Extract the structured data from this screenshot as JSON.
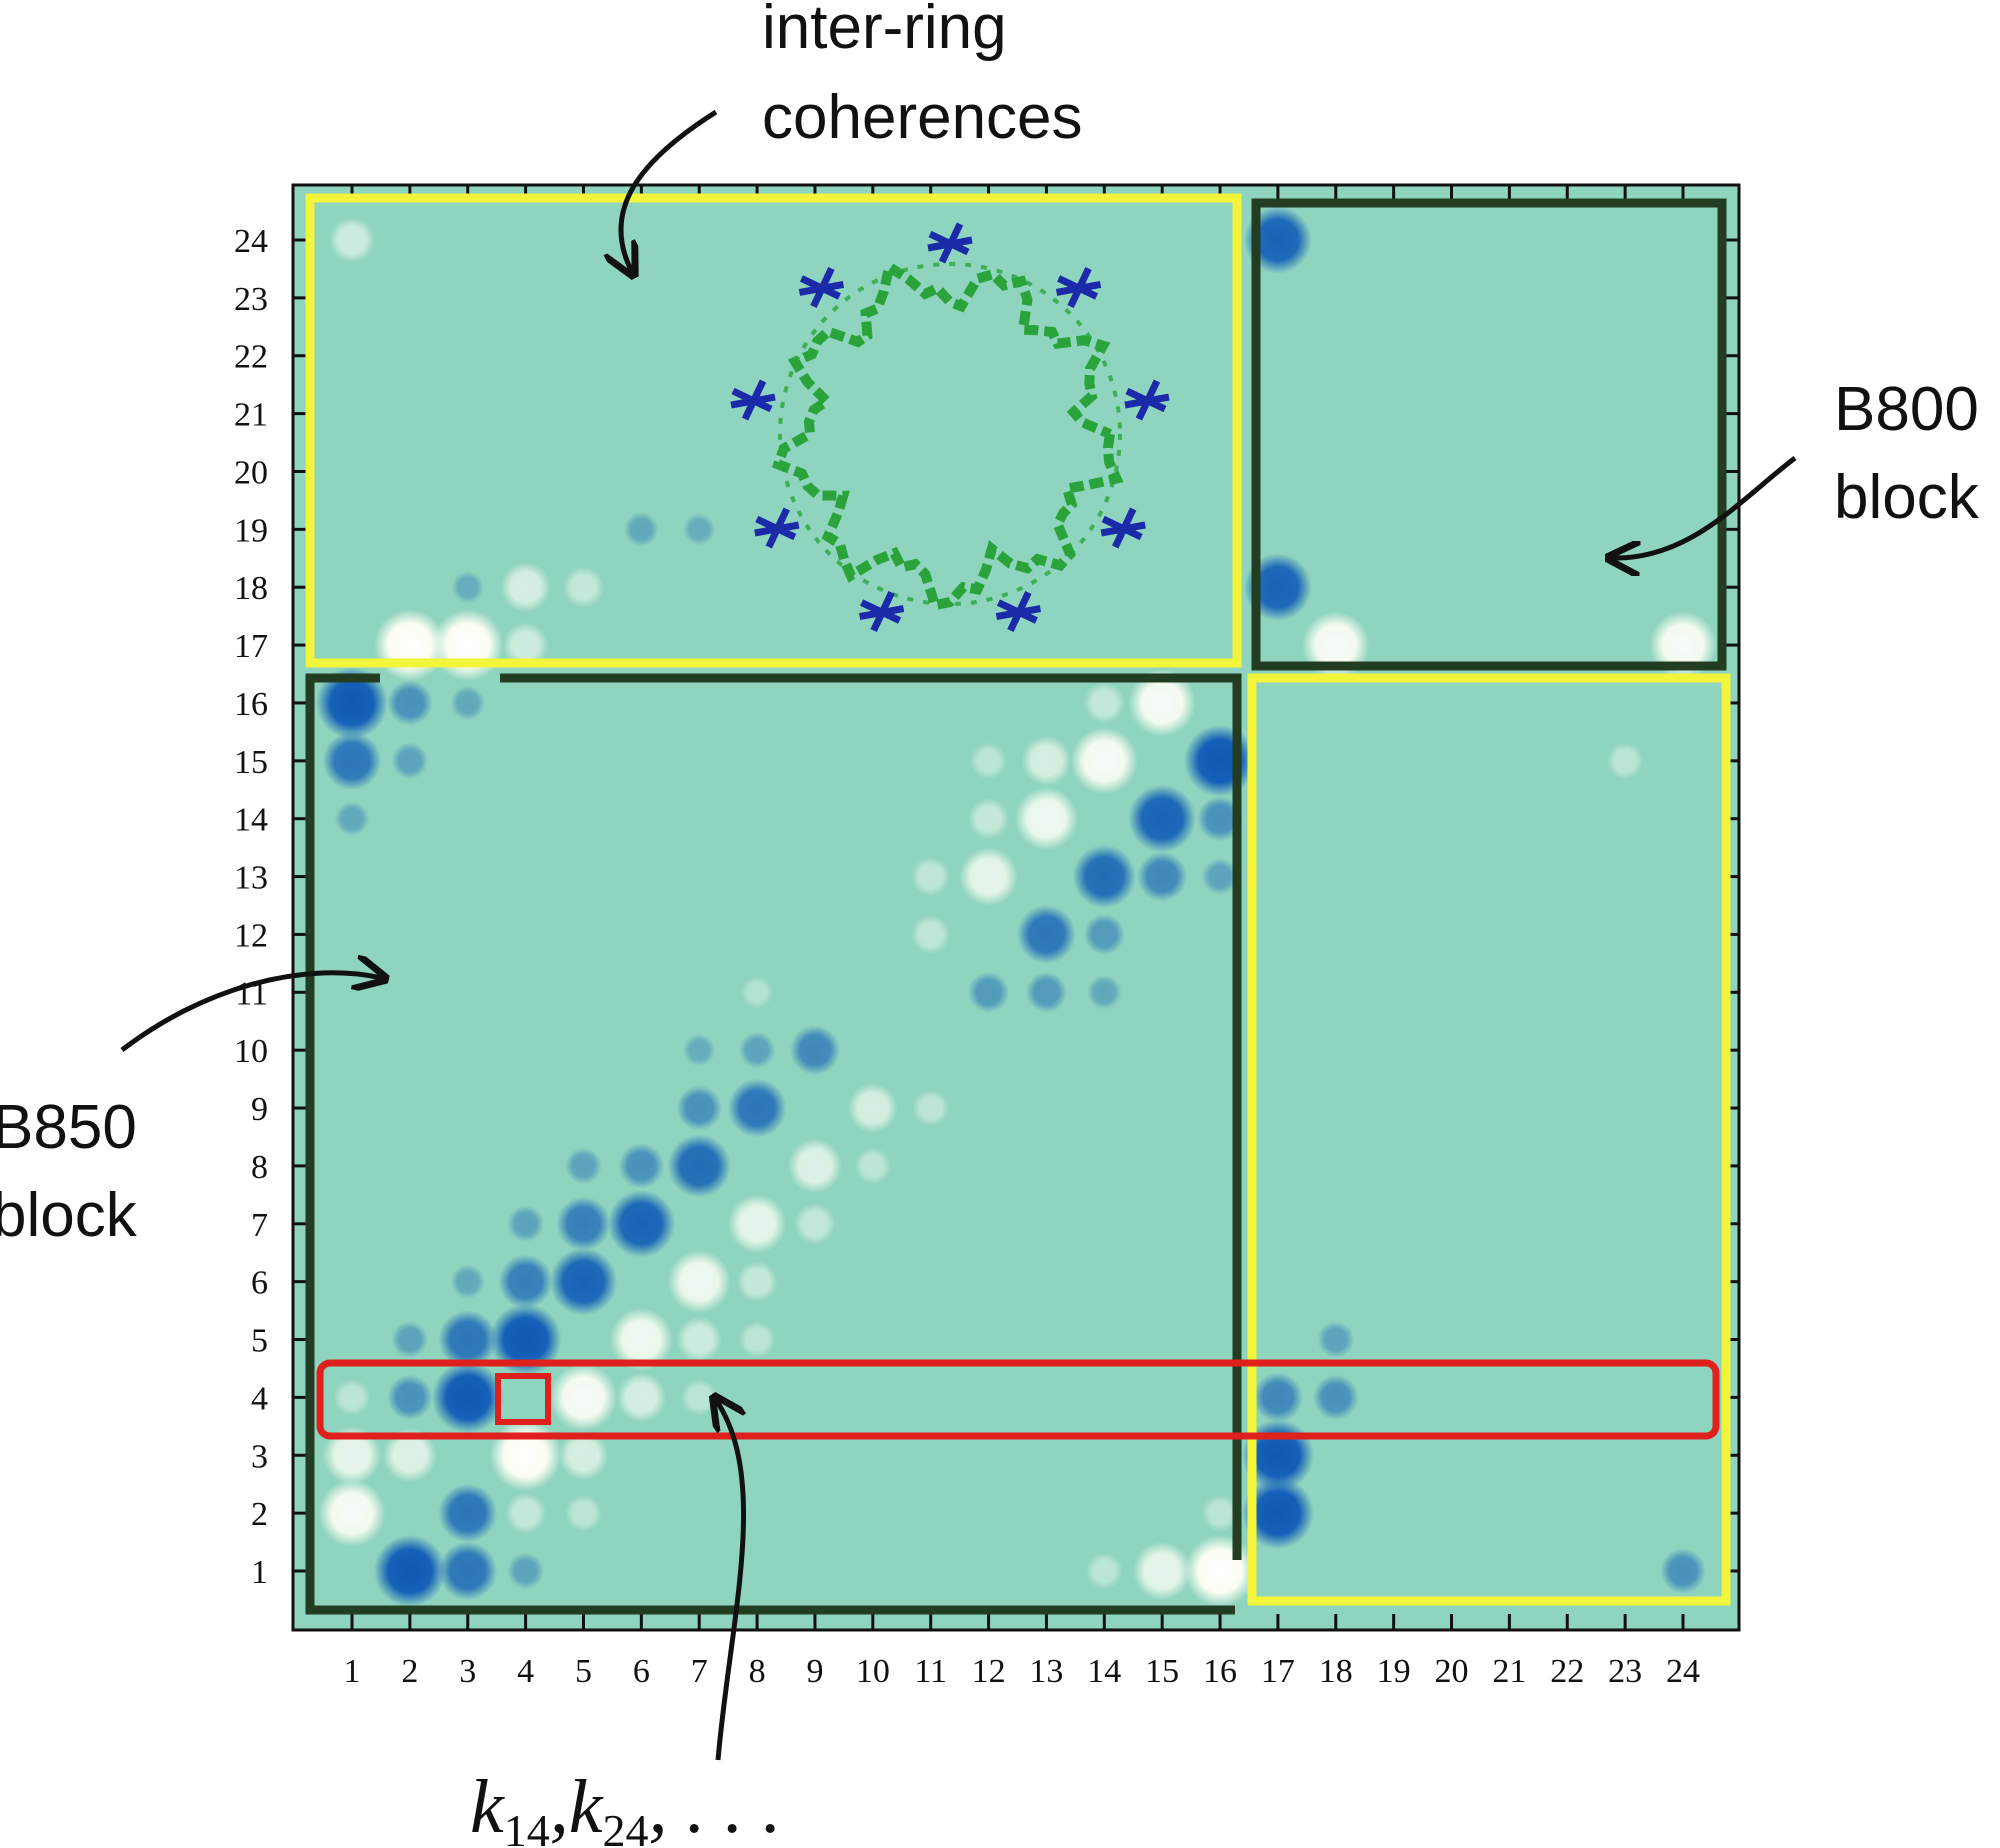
{
  "colors": {
    "background": "#8fd4bf",
    "negative": "#1560b8",
    "positive": "#fbfdf2",
    "yellow_box": "#f2f53a",
    "dark_box": "#233d22",
    "red_box": "#e0201c",
    "ring_green": "#2aa43a",
    "ring_blue": "#1a2aa8"
  },
  "annotations": {
    "inter_ring_line1": "inter-ring",
    "inter_ring_line2": "coherences",
    "b800_line1": "B800",
    "b800_line2": "block",
    "b850_line1": "B850",
    "b850_line2": "block",
    "k_label": {
      "k": "k",
      "sub1": "14",
      "sub2": "24",
      "sep": ",",
      "ellipsis": ", . . ."
    }
  },
  "chart_data": {
    "type": "heatmap",
    "title": "",
    "xlabel": "",
    "ylabel": "",
    "x_ticks": [
      "1",
      "2",
      "3",
      "4",
      "5",
      "6",
      "7",
      "8",
      "9",
      "10",
      "11",
      "12",
      "13",
      "14",
      "15",
      "16",
      "17",
      "18",
      "19",
      "20",
      "21",
      "22",
      "23",
      "24"
    ],
    "y_ticks": [
      "1",
      "2",
      "3",
      "4",
      "5",
      "6",
      "7",
      "8",
      "9",
      "10",
      "11",
      "12",
      "13",
      "14",
      "15",
      "16",
      "17",
      "18",
      "19",
      "20",
      "21",
      "22",
      "23",
      "24"
    ],
    "xlim": [
      1,
      24
    ],
    "ylim": [
      1,
      24
    ],
    "grid": false,
    "value_scale": "negative = blue, positive = white, 0 = background",
    "points": [
      [
        1,
        16,
        -1.0
      ],
      [
        2,
        16,
        -0.4
      ],
      [
        3,
        16,
        -0.15
      ],
      [
        14,
        16,
        0.3
      ],
      [
        15,
        16,
        0.9
      ],
      [
        1,
        15,
        -0.7
      ],
      [
        2,
        15,
        -0.2
      ],
      [
        12,
        15,
        0.2
      ],
      [
        13,
        15,
        0.5
      ],
      [
        14,
        15,
        0.9
      ],
      [
        16,
        15,
        -1.0
      ],
      [
        1,
        14,
        -0.15
      ],
      [
        12,
        14,
        0.3
      ],
      [
        13,
        14,
        0.8
      ],
      [
        15,
        14,
        -0.9
      ],
      [
        16,
        14,
        -0.4
      ],
      [
        11,
        13,
        0.25
      ],
      [
        12,
        13,
        0.7
      ],
      [
        14,
        13,
        -0.8
      ],
      [
        15,
        13,
        -0.5
      ],
      [
        16,
        13,
        -0.2
      ],
      [
        11,
        12,
        0.25
      ],
      [
        13,
        12,
        -0.7
      ],
      [
        14,
        12,
        -0.3
      ],
      [
        8,
        11,
        0.1
      ],
      [
        12,
        11,
        -0.3
      ],
      [
        13,
        11,
        -0.3
      ],
      [
        14,
        11,
        -0.15
      ],
      [
        7,
        10,
        -0.1
      ],
      [
        8,
        10,
        -0.2
      ],
      [
        9,
        10,
        -0.5
      ],
      [
        7,
        9,
        -0.4
      ],
      [
        8,
        9,
        -0.7
      ],
      [
        10,
        9,
        0.5
      ],
      [
        11,
        9,
        0.2
      ],
      [
        5,
        8,
        -0.2
      ],
      [
        6,
        8,
        -0.4
      ],
      [
        7,
        8,
        -0.8
      ],
      [
        9,
        8,
        0.6
      ],
      [
        10,
        8,
        0.2
      ],
      [
        4,
        7,
        -0.2
      ],
      [
        5,
        7,
        -0.6
      ],
      [
        6,
        7,
        -0.9
      ],
      [
        8,
        7,
        0.7
      ],
      [
        9,
        7,
        0.3
      ],
      [
        3,
        6,
        -0.15
      ],
      [
        4,
        6,
        -0.6
      ],
      [
        5,
        6,
        -0.9
      ],
      [
        7,
        6,
        0.8
      ],
      [
        8,
        6,
        0.3
      ],
      [
        2,
        5,
        -0.2
      ],
      [
        3,
        5,
        -0.7
      ],
      [
        4,
        5,
        -1.0
      ],
      [
        6,
        5,
        0.8
      ],
      [
        7,
        5,
        0.4
      ],
      [
        8,
        5,
        0.2
      ],
      [
        18,
        5,
        -0.2
      ],
      [
        1,
        4,
        0.2
      ],
      [
        2,
        4,
        -0.4
      ],
      [
        3,
        4,
        -1.0
      ],
      [
        5,
        4,
        0.9
      ],
      [
        6,
        4,
        0.5
      ],
      [
        7,
        4,
        0.2
      ],
      [
        17,
        4,
        -0.5
      ],
      [
        18,
        4,
        -0.4
      ],
      [
        1,
        3,
        0.7
      ],
      [
        2,
        3,
        0.6
      ],
      [
        4,
        3,
        1.0
      ],
      [
        5,
        3,
        0.5
      ],
      [
        17,
        3,
        -1.0
      ],
      [
        1,
        2,
        0.9
      ],
      [
        3,
        2,
        -0.7
      ],
      [
        4,
        2,
        0.3
      ],
      [
        5,
        2,
        0.2
      ],
      [
        16,
        2,
        0.2
      ],
      [
        17,
        2,
        -1.0
      ],
      [
        2,
        1,
        -1.0
      ],
      [
        3,
        1,
        -0.7
      ],
      [
        4,
        1,
        -0.2
      ],
      [
        14,
        1,
        0.2
      ],
      [
        15,
        1,
        0.7
      ],
      [
        16,
        1,
        1.0
      ],
      [
        24,
        1,
        -0.4
      ],
      [
        2,
        17,
        1.0
      ],
      [
        3,
        17,
        1.0
      ],
      [
        4,
        17,
        0.4
      ],
      [
        18,
        17,
        0.9
      ],
      [
        24,
        17,
        0.9
      ],
      [
        3,
        18,
        -0.1
      ],
      [
        4,
        18,
        0.5
      ],
      [
        5,
        18,
        0.3
      ],
      [
        17,
        18,
        -0.9
      ],
      [
        6,
        19,
        -0.15
      ],
      [
        7,
        19,
        -0.1
      ],
      [
        1,
        24,
        0.4
      ],
      [
        17,
        24,
        -0.9
      ],
      [
        23,
        15,
        0.2
      ]
    ],
    "blocks": [
      {
        "label": "inter-ring coherences",
        "x": [
          1,
          16
        ],
        "y": [
          17,
          24
        ],
        "color": "yellow"
      },
      {
        "label": "B800 block",
        "x": [
          17,
          24
        ],
        "y": [
          17,
          24
        ],
        "color": "dark"
      },
      {
        "label": "B850 block",
        "x": [
          1,
          16
        ],
        "y": [
          1,
          16
        ],
        "color": "dark"
      },
      {
        "label": "inter-ring coherences",
        "x": [
          17,
          24
        ],
        "y": [
          1,
          16
        ],
        "color": "yellow"
      }
    ],
    "highlight_row": {
      "y": 4,
      "x": [
        1,
        24
      ],
      "color": "red"
    },
    "highlight_cell": {
      "x": 4,
      "y": 4,
      "color": "red"
    }
  }
}
